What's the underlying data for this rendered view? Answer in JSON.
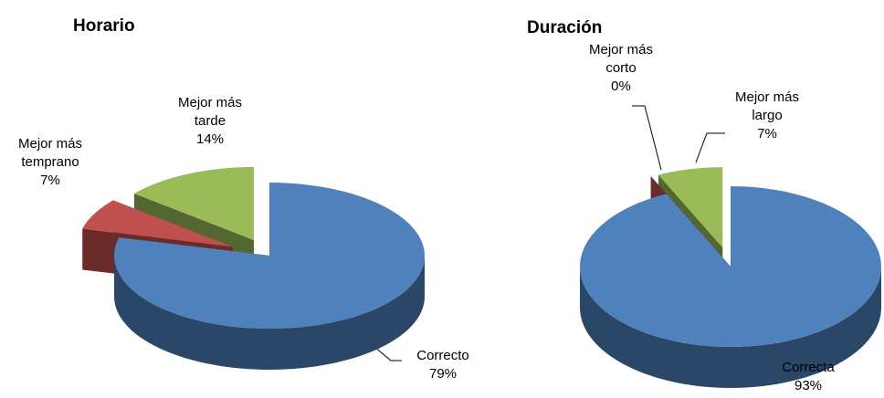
{
  "chart_data": [
    {
      "type": "pie",
      "title": "Horario",
      "categories": [
        "Correcto",
        "Mejor más temprano",
        "Mejor más tarde"
      ],
      "values": [
        79,
        7,
        14
      ],
      "value_labels": [
        "79%",
        "7%",
        "14%"
      ],
      "colors": [
        "#4f81bd",
        "#c0504d",
        "#9bbb59"
      ]
    },
    {
      "type": "pie",
      "title": "Duración",
      "categories": [
        "Correcta",
        "Mejor más corto",
        "Mejor más largo"
      ],
      "values": [
        93,
        0,
        7
      ],
      "value_labels": [
        "93%",
        "0%",
        "7%"
      ],
      "colors": [
        "#4f81bd",
        "#c0504d",
        "#9bbb59"
      ]
    }
  ]
}
